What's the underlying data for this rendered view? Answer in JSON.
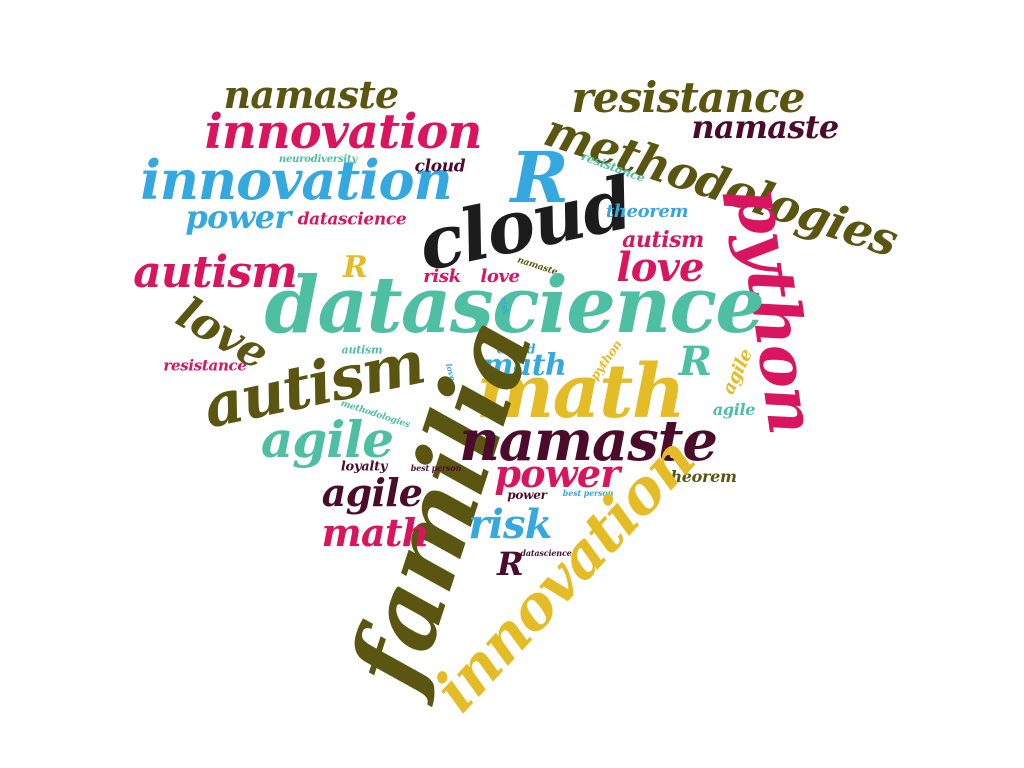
{
  "colors": {
    "pink": "#d8155e",
    "teal": "#4ebfa3",
    "blue": "#35a8e0",
    "olive": "#5a5510",
    "maroon": "#4b0c2c",
    "gold": "#e4bc26",
    "black": "#1c1c1c"
  },
  "words": [
    {
      "text": "namaste",
      "color": "olive"
    },
    {
      "text": "innovation",
      "color": "pink"
    },
    {
      "text": "resistance",
      "color": "olive"
    },
    {
      "text": "namaste",
      "color": "maroon"
    },
    {
      "text": "methodologies",
      "color": "olive"
    },
    {
      "text": "innovation",
      "color": "blue"
    },
    {
      "text": "neurodiversity",
      "color": "teal"
    },
    {
      "text": "cloud",
      "color": "maroon"
    },
    {
      "text": "R",
      "color": "blue"
    },
    {
      "text": "resistance",
      "color": "teal"
    },
    {
      "text": "power",
      "color": "blue"
    },
    {
      "text": "datascience",
      "color": "pink"
    },
    {
      "text": "cloud",
      "color": "black"
    },
    {
      "text": "theorem",
      "color": "blue"
    },
    {
      "text": "python",
      "color": "pink"
    },
    {
      "text": "autism",
      "color": "pink"
    },
    {
      "text": "R",
      "color": "gold"
    },
    {
      "text": "autism",
      "color": "pink"
    },
    {
      "text": "love",
      "color": "pink"
    },
    {
      "text": "risk",
      "color": "pink"
    },
    {
      "text": "love",
      "color": "pink"
    },
    {
      "text": "namaste",
      "color": "olive"
    },
    {
      "text": "datascience",
      "color": "teal"
    },
    {
      "text": "love",
      "color": "olive"
    },
    {
      "text": "autism",
      "color": "teal"
    },
    {
      "text": "resistance",
      "color": "pink"
    },
    {
      "text": "risk",
      "color": "blue"
    },
    {
      "text": "cloud",
      "color": "blue"
    },
    {
      "text": "python",
      "color": "gold"
    },
    {
      "text": "autism",
      "color": "olive"
    },
    {
      "text": "math",
      "color": "blue"
    },
    {
      "text": "R",
      "color": "teal"
    },
    {
      "text": "agile",
      "color": "gold"
    },
    {
      "text": "love",
      "color": "blue"
    },
    {
      "text": "methodologies",
      "color": "teal"
    },
    {
      "text": "math",
      "color": "gold"
    },
    {
      "text": "agile",
      "color": "teal"
    },
    {
      "text": "agile",
      "color": "teal"
    },
    {
      "text": "familia",
      "color": "olive"
    },
    {
      "text": "namaste",
      "color": "maroon"
    },
    {
      "text": "loyalty",
      "color": "maroon"
    },
    {
      "text": "best person",
      "color": "maroon"
    },
    {
      "text": "power",
      "color": "pink"
    },
    {
      "text": "theorem",
      "color": "olive"
    },
    {
      "text": "agile",
      "color": "maroon"
    },
    {
      "text": "power",
      "color": "maroon"
    },
    {
      "text": "best person",
      "color": "blue"
    },
    {
      "text": "risk",
      "color": "blue"
    },
    {
      "text": "math",
      "color": "pink"
    },
    {
      "text": "innovation",
      "color": "gold"
    },
    {
      "text": "R",
      "color": "maroon"
    },
    {
      "text": "datascience",
      "color": "maroon"
    }
  ]
}
